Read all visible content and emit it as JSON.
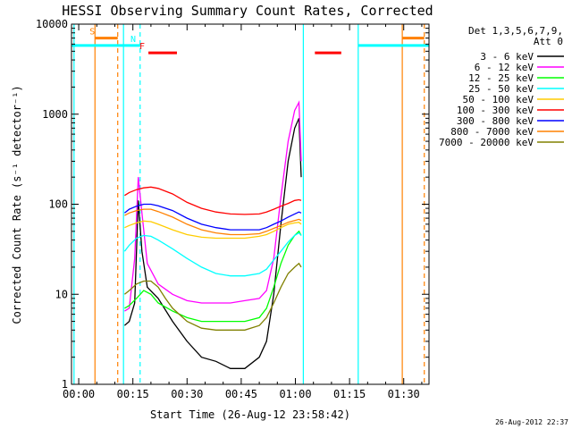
{
  "chart_data": {
    "type": "line",
    "title": "HESSI Observing Summary Count Rates, Corrected",
    "xlabel": "Start Time (26-Aug-12 23:58:42)",
    "ylabel": "Corrected Count Rate (s⁻¹ detector⁻¹)",
    "y_scale": "log",
    "ylim": [
      1,
      10000
    ],
    "xlim_minutes": [
      -2,
      97
    ],
    "x_ticks": [
      {
        "m": 0,
        "label": "00:00"
      },
      {
        "m": 15,
        "label": "00:15"
      },
      {
        "m": 30,
        "label": "00:30"
      },
      {
        "m": 45,
        "label": "00:45"
      },
      {
        "m": 60,
        "label": "01:00"
      },
      {
        "m": 75,
        "label": "01:15"
      },
      {
        "m": 90,
        "label": "01:30"
      }
    ],
    "y_ticks": [
      {
        "v": 1,
        "label": "1"
      },
      {
        "v": 10,
        "label": "10"
      },
      {
        "v": 100,
        "label": "100"
      },
      {
        "v": 1000,
        "label": "1000"
      },
      {
        "v": 10000,
        "label": "10000"
      }
    ],
    "legend": {
      "header": [
        "Det 1,3,5,6,7,9,",
        "Att 0"
      ],
      "placement": "right"
    },
    "series": [
      {
        "name": "3 - 6 keV",
        "color": "#000000",
        "data": [
          [
            12.7,
            4.5
          ],
          [
            14,
            5
          ],
          [
            15.5,
            8
          ],
          [
            16.5,
            110
          ],
          [
            17.5,
            30
          ],
          [
            19,
            12
          ],
          [
            22,
            9
          ],
          [
            26,
            5
          ],
          [
            30,
            3
          ],
          [
            34,
            2
          ],
          [
            38,
            1.8
          ],
          [
            42,
            1.5
          ],
          [
            46,
            1.5
          ],
          [
            50,
            2
          ],
          [
            52,
            3
          ],
          [
            54,
            10
          ],
          [
            56,
            60
          ],
          [
            58,
            300
          ],
          [
            59.8,
            700
          ],
          [
            61,
            900
          ],
          [
            61.6,
            200
          ]
        ]
      },
      {
        "name": "6 - 12 keV",
        "color": "#ff00ff",
        "data": [
          [
            12.7,
            6.5
          ],
          [
            14,
            7
          ],
          [
            15.5,
            25
          ],
          [
            16.5,
            200
          ],
          [
            17.5,
            80
          ],
          [
            19,
            22
          ],
          [
            22,
            13
          ],
          [
            26,
            10
          ],
          [
            30,
            8.5
          ],
          [
            34,
            8
          ],
          [
            38,
            8
          ],
          [
            42,
            8
          ],
          [
            46,
            8.5
          ],
          [
            50,
            9
          ],
          [
            52,
            11
          ],
          [
            54,
            25
          ],
          [
            56,
            120
          ],
          [
            58,
            500
          ],
          [
            59.8,
            1100
          ],
          [
            61,
            1350
          ],
          [
            61.6,
            300
          ]
        ]
      },
      {
        "name": "12 - 25 keV",
        "color": "#00ff00",
        "data": [
          [
            12.7,
            7
          ],
          [
            14,
            7.5
          ],
          [
            16,
            9
          ],
          [
            18,
            11
          ],
          [
            20,
            10
          ],
          [
            22,
            8
          ],
          [
            26,
            6.5
          ],
          [
            30,
            5.5
          ],
          [
            34,
            5
          ],
          [
            38,
            5
          ],
          [
            42,
            5
          ],
          [
            46,
            5
          ],
          [
            50,
            5.5
          ],
          [
            52,
            7
          ],
          [
            54,
            12
          ],
          [
            56,
            22
          ],
          [
            58,
            35
          ],
          [
            59.8,
            45
          ],
          [
            61,
            50
          ],
          [
            61.6,
            45
          ]
        ]
      },
      {
        "name": "25 - 50 keV",
        "color": "#00ffff",
        "data": [
          [
            12.7,
            30
          ],
          [
            14,
            35
          ],
          [
            16,
            42
          ],
          [
            18,
            45
          ],
          [
            20,
            44
          ],
          [
            22,
            40
          ],
          [
            26,
            32
          ],
          [
            30,
            25
          ],
          [
            34,
            20
          ],
          [
            38,
            17
          ],
          [
            42,
            16
          ],
          [
            46,
            16
          ],
          [
            50,
            17
          ],
          [
            52,
            19
          ],
          [
            54,
            24
          ],
          [
            56,
            30
          ],
          [
            58,
            38
          ],
          [
            59.8,
            45
          ],
          [
            61,
            48
          ],
          [
            61.6,
            45
          ]
        ]
      },
      {
        "name": "50 - 100 keV",
        "color": "#ffcc00",
        "data": [
          [
            12.7,
            55
          ],
          [
            14,
            58
          ],
          [
            16,
            62
          ],
          [
            18,
            65
          ],
          [
            20,
            64
          ],
          [
            22,
            60
          ],
          [
            26,
            52
          ],
          [
            30,
            46
          ],
          [
            34,
            43
          ],
          [
            38,
            42
          ],
          [
            42,
            42
          ],
          [
            46,
            42
          ],
          [
            50,
            44
          ],
          [
            52,
            46
          ],
          [
            54,
            50
          ],
          [
            56,
            55
          ],
          [
            58,
            60
          ],
          [
            59.8,
            62
          ],
          [
            61,
            63
          ],
          [
            61.6,
            60
          ]
        ]
      },
      {
        "name": "100 - 300 keV",
        "color": "#ff0000",
        "data": [
          [
            12.7,
            125
          ],
          [
            14,
            135
          ],
          [
            16,
            145
          ],
          [
            18,
            152
          ],
          [
            20,
            155
          ],
          [
            22,
            150
          ],
          [
            26,
            130
          ],
          [
            30,
            105
          ],
          [
            34,
            90
          ],
          [
            38,
            82
          ],
          [
            42,
            78
          ],
          [
            46,
            77
          ],
          [
            50,
            78
          ],
          [
            52,
            82
          ],
          [
            54,
            88
          ],
          [
            56,
            95
          ],
          [
            58,
            102
          ],
          [
            59.8,
            110
          ],
          [
            61,
            112
          ],
          [
            61.6,
            110
          ]
        ]
      },
      {
        "name": "300 - 800 keV",
        "color": "#0000ff",
        "data": [
          [
            12.7,
            80
          ],
          [
            14,
            88
          ],
          [
            16,
            95
          ],
          [
            18,
            100
          ],
          [
            20,
            100
          ],
          [
            22,
            96
          ],
          [
            26,
            85
          ],
          [
            30,
            70
          ],
          [
            34,
            60
          ],
          [
            38,
            55
          ],
          [
            42,
            52
          ],
          [
            46,
            52
          ],
          [
            50,
            52
          ],
          [
            52,
            55
          ],
          [
            54,
            60
          ],
          [
            56,
            65
          ],
          [
            58,
            72
          ],
          [
            59.8,
            78
          ],
          [
            61,
            82
          ],
          [
            61.6,
            80
          ]
        ]
      },
      {
        "name": "800 - 7000 keV",
        "color": "#ff8000",
        "data": [
          [
            12.7,
            75
          ],
          [
            14,
            80
          ],
          [
            16,
            85
          ],
          [
            18,
            88
          ],
          [
            20,
            88
          ],
          [
            22,
            83
          ],
          [
            26,
            72
          ],
          [
            30,
            60
          ],
          [
            34,
            52
          ],
          [
            38,
            48
          ],
          [
            42,
            46
          ],
          [
            46,
            46
          ],
          [
            50,
            47
          ],
          [
            52,
            50
          ],
          [
            54,
            54
          ],
          [
            56,
            58
          ],
          [
            58,
            63
          ],
          [
            59.8,
            66
          ],
          [
            61,
            68
          ],
          [
            61.6,
            66
          ]
        ]
      },
      {
        "name": "7000 - 20000 keV",
        "color": "#808000",
        "data": [
          [
            12.7,
            10
          ],
          [
            14,
            11
          ],
          [
            16,
            13
          ],
          [
            18,
            14
          ],
          [
            20,
            14
          ],
          [
            22,
            12
          ],
          [
            24,
            9
          ],
          [
            26,
            7
          ],
          [
            30,
            5
          ],
          [
            34,
            4.2
          ],
          [
            38,
            4
          ],
          [
            42,
            4
          ],
          [
            46,
            4
          ],
          [
            50,
            4.5
          ],
          [
            52,
            5.5
          ],
          [
            54,
            8
          ],
          [
            56,
            12
          ],
          [
            58,
            17
          ],
          [
            59.8,
            20
          ],
          [
            61,
            22
          ],
          [
            61.6,
            20
          ]
        ]
      }
    ],
    "vertical_lines": [
      {
        "m": -1.3,
        "color": "#00ffff",
        "style": "solid"
      },
      {
        "m": 12.4,
        "color": "#00ffff",
        "style": "solid"
      },
      {
        "m": 62.2,
        "color": "#00ffff",
        "style": "solid"
      },
      {
        "m": 77.4,
        "color": "#00ffff",
        "style": "solid"
      },
      {
        "m": 4.5,
        "color": "#ff8000",
        "style": "solid"
      },
      {
        "m": 10.8,
        "color": "#ff8000",
        "style": "dashed"
      },
      {
        "m": 89.6,
        "color": "#ff8000",
        "style": "solid"
      },
      {
        "m": 95.7,
        "color": "#ff8000",
        "style": "dashed"
      },
      {
        "m": 17.0,
        "color": "#00ffff",
        "style": "dashed"
      }
    ],
    "flag_bars": [
      {
        "label": "S",
        "color": "#ff8000",
        "m0": 4.5,
        "m1": 10.8,
        "y": 7000
      },
      {
        "label": "N",
        "color": "#00ffff",
        "m0": -2,
        "m1": 17.0,
        "y": 5800
      },
      {
        "label": "F",
        "color": "#ff0000",
        "m0": 19.3,
        "m1": 27.2,
        "y": 4800
      },
      {
        "label": "",
        "color": "#ff0000",
        "m0": 65.4,
        "m1": 72.7,
        "y": 4800
      },
      {
        "label": "",
        "color": "#00ffff",
        "m0": 77.4,
        "m1": 97,
        "y": 5800
      },
      {
        "label": "",
        "color": "#ff8000",
        "m0": 89.6,
        "m1": 95.7,
        "y": 7000
      }
    ],
    "grid": false
  },
  "footer": {
    "date_stamp": "26-Aug-2012 22:37"
  }
}
